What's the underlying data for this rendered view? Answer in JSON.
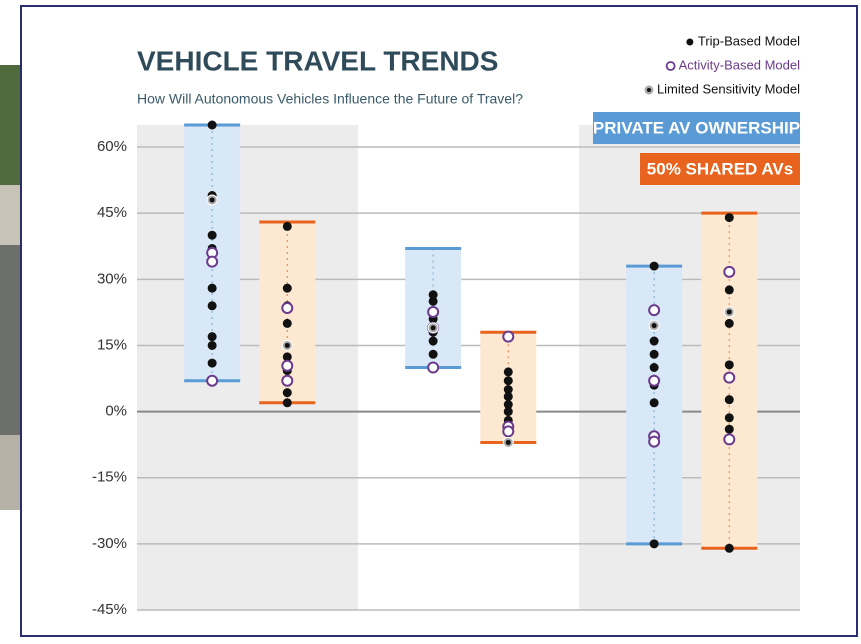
{
  "chart_data": {
    "type": "range-dot",
    "title": "VEHICLE TRAVEL TRENDS",
    "subtitle": "How Will Autonomous Vehicles Influence the Future of Travel?",
    "ylim": [
      -45,
      65
    ],
    "yticks": [
      {
        "value": 60,
        "label": "60%"
      },
      {
        "value": 45,
        "label": "45%"
      },
      {
        "value": 30,
        "label": "30%"
      },
      {
        "value": 15,
        "label": "15%"
      },
      {
        "value": 0,
        "label": "0%"
      },
      {
        "value": -15,
        "label": "-15%"
      },
      {
        "value": -30,
        "label": "-30%"
      },
      {
        "value": -45,
        "label": "-45%"
      }
    ],
    "grid": true,
    "series": [
      {
        "name": "PRIVATE AV OWNERSHIP",
        "color": "#5b9bd5",
        "fill": "#d9e8f7",
        "low": [
          7,
          10,
          -30
        ],
        "high": [
          65,
          37,
          33
        ]
      },
      {
        "name": "50% SHARED AVs",
        "color": "#e8641e",
        "fill": "#fde9d2",
        "low": [
          2,
          -7,
          -31
        ],
        "high": [
          43,
          18,
          45
        ]
      }
    ],
    "models": [
      {
        "name": "Trip-Based Model",
        "style": "filled",
        "color": "#111111",
        "values": [
          [
            [
              65,
              49,
              40,
              37,
              28,
              24,
              17,
              15,
              11
            ],
            [
              26.5,
              25,
              21,
              19,
              18,
              16,
              13
            ],
            [
              33,
              19.7,
              16,
              13,
              10,
              6,
              2,
              -30
            ]
          ],
          [
            [
              42,
              28,
              24,
              20,
              12.4,
              9.3,
              4.3,
              2
            ],
            [
              9,
              7,
              5,
              3.4,
              1.6,
              0,
              -2,
              -4
            ],
            [
              44,
              27.6,
              20,
              10.6,
              2.7,
              -1.4,
              -4,
              -31
            ]
          ]
        ]
      },
      {
        "name": "Activity-Based Model",
        "style": "open",
        "color": "#6b3a8c",
        "values": [
          [
            [
              36,
              34,
              7
            ],
            [
              22.6,
              19,
              10
            ],
            [
              23,
              7,
              -5.6,
              -6.8
            ]
          ],
          [
            [
              23.5,
              10.4,
              7
            ],
            [
              17,
              -3.4,
              -4.5
            ],
            [
              31.7,
              7.7,
              -6.3
            ]
          ]
        ]
      },
      {
        "name": "Limited Sensitivity Model",
        "style": "ringed",
        "color": "#111111",
        "values": [
          [
            [
              48
            ],
            [
              19
            ],
            [
              19.5
            ]
          ],
          [
            [
              15
            ],
            [
              -7
            ],
            [
              22.6
            ]
          ]
        ]
      }
    ]
  }
}
